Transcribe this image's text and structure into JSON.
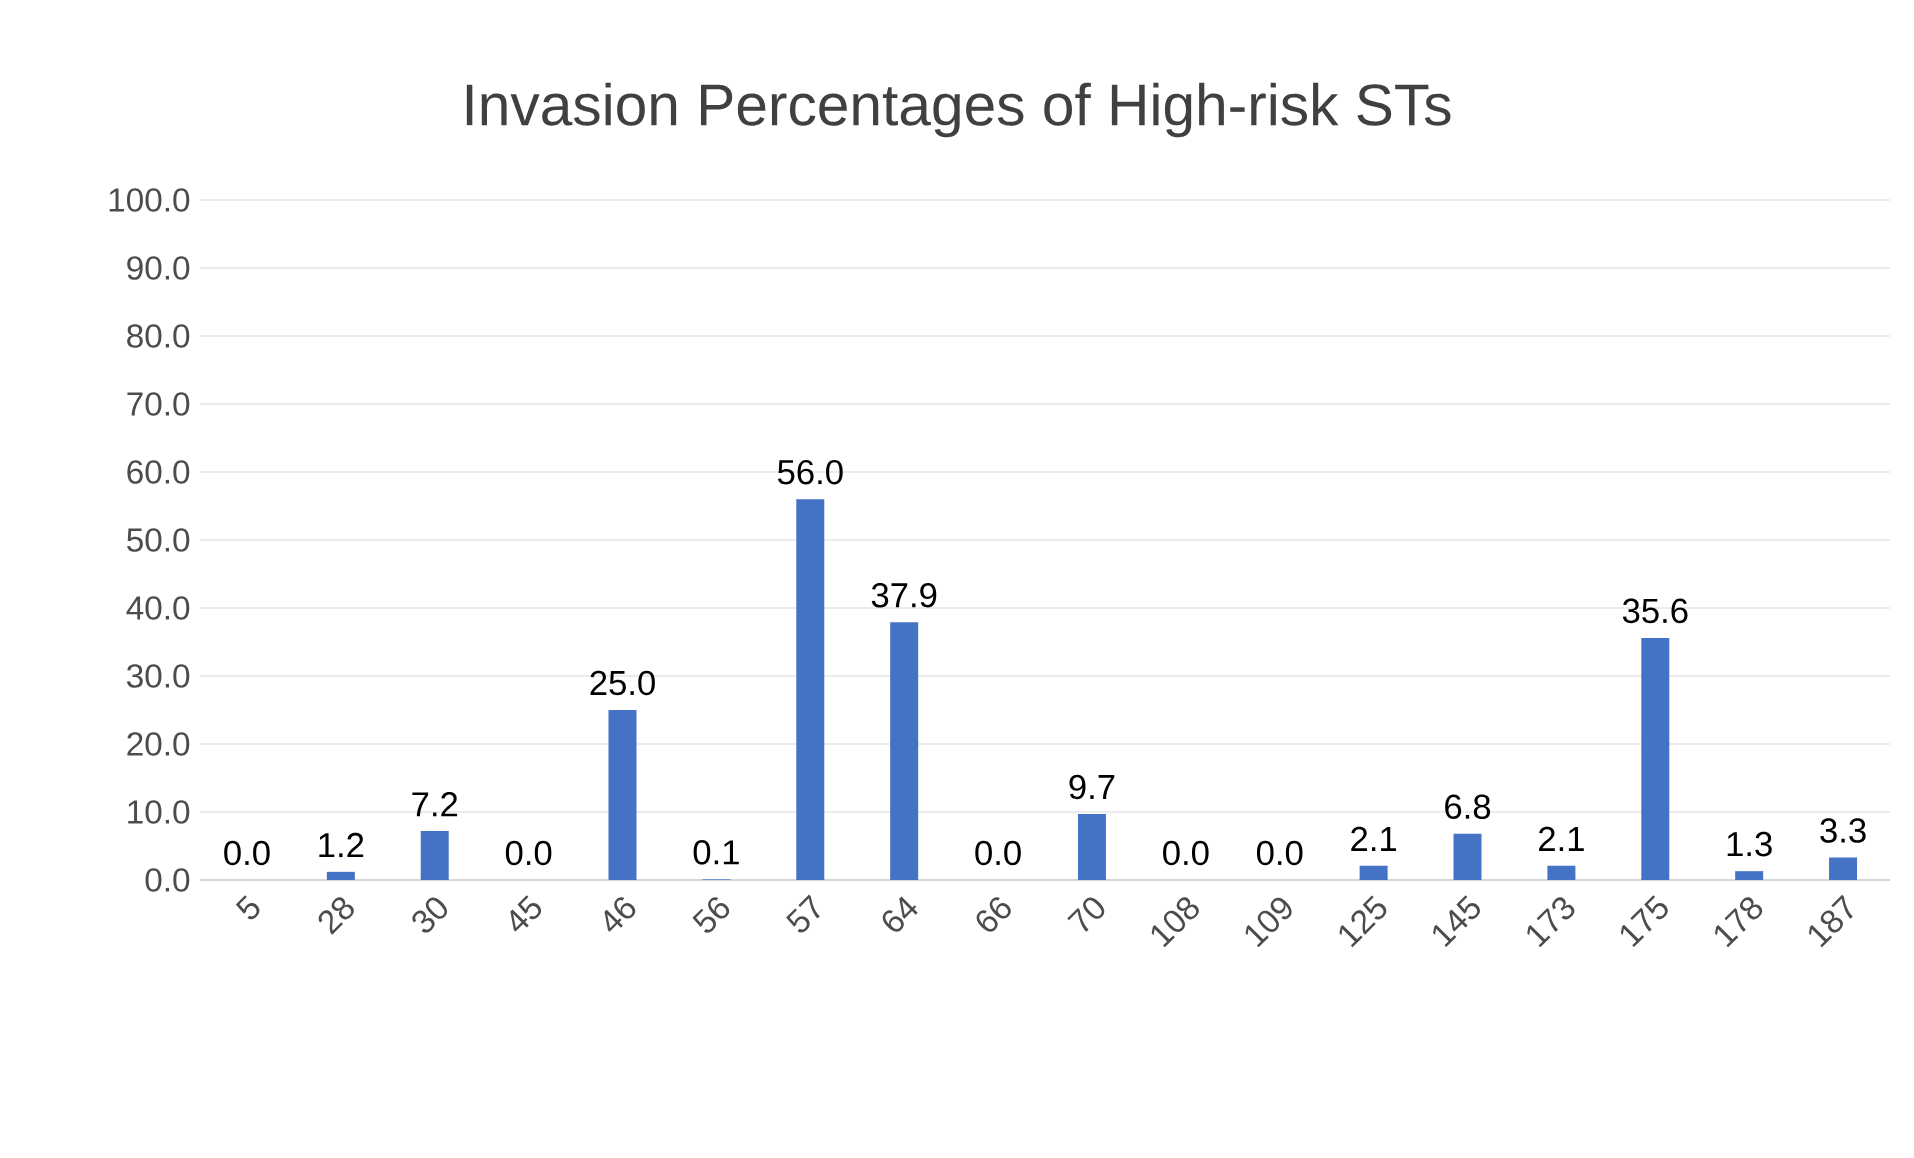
{
  "chart_data": {
    "type": "bar",
    "title": "Invasion Percentages of High-risk STs",
    "categories": [
      "5",
      "28",
      "30",
      "45",
      "46",
      "56",
      "57",
      "64",
      "66",
      "70",
      "108",
      "109",
      "125",
      "145",
      "173",
      "175",
      "178",
      "187"
    ],
    "values": [
      0.0,
      1.2,
      7.2,
      0.0,
      25.0,
      0.1,
      56.0,
      37.9,
      0.0,
      9.7,
      0.0,
      0.0,
      2.1,
      6.8,
      2.1,
      35.6,
      1.3,
      3.3
    ],
    "value_labels": [
      "0.0",
      "1.2",
      "7.2",
      "0.0",
      "25.0",
      "0.1",
      "56.0",
      "37.9",
      "0.0",
      "9.7",
      "0.0",
      "0.0",
      "2.1",
      "6.8",
      "2.1",
      "35.6",
      "1.3",
      "3.3"
    ],
    "color": "#4472c4",
    "ylim": [
      0,
      100
    ],
    "yticks": [
      {
        "value": 0,
        "label": "0.0"
      },
      {
        "value": 10,
        "label": "10.0"
      },
      {
        "value": 20,
        "label": "20.0"
      },
      {
        "value": 30,
        "label": "30.0"
      },
      {
        "value": 40,
        "label": "40.0"
      },
      {
        "value": 50,
        "label": "50.0"
      },
      {
        "value": 60,
        "label": "60.0"
      },
      {
        "value": 70,
        "label": "70.0"
      },
      {
        "value": 80,
        "label": "80.0"
      },
      {
        "value": 90,
        "label": "90.0"
      },
      {
        "value": 100,
        "label": "100.0"
      }
    ],
    "grid": "y"
  }
}
